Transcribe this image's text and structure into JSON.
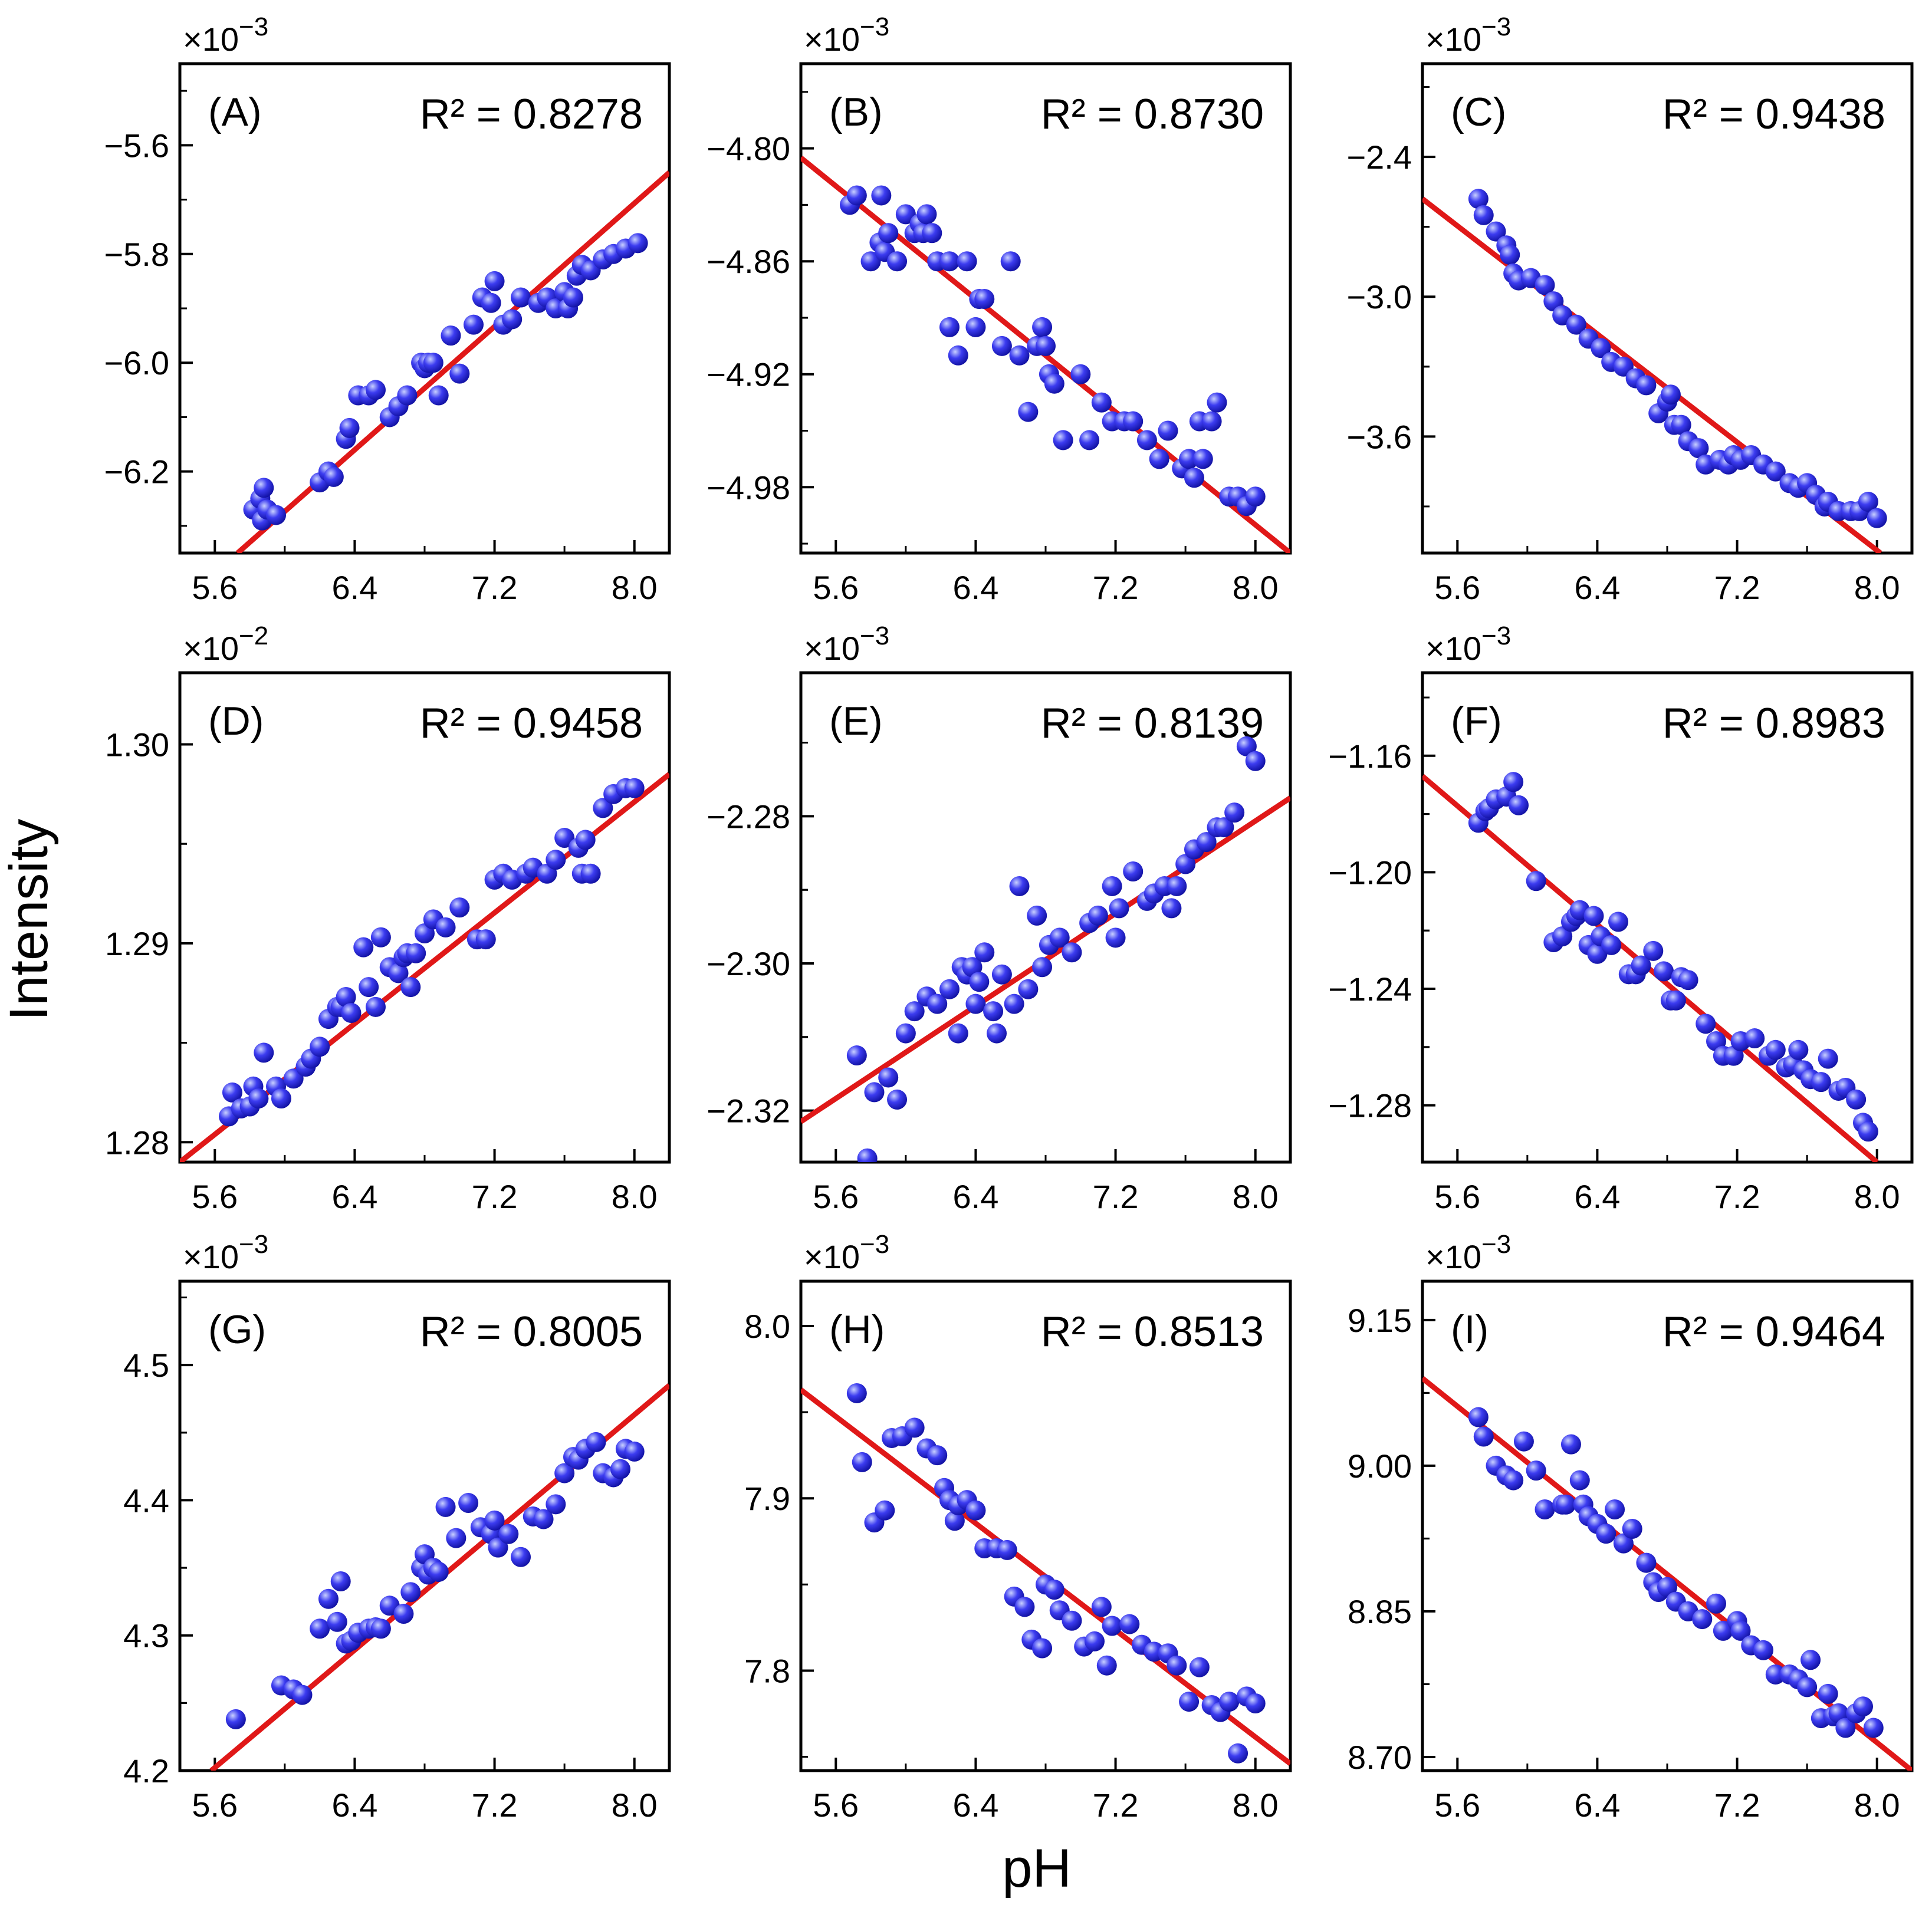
{
  "figure": {
    "xlabel": "pH",
    "ylabel": "Intensity"
  },
  "colors": {
    "point_fill": "#3c3cf0",
    "point_highlight": "#c8d0ff",
    "point_shadow": "#1010a0",
    "fit_line": "#e01818",
    "axes": "#000000"
  },
  "chart_data": [
    {
      "type": "scatter",
      "id": "A",
      "panel_label": "(A)",
      "r2_text": "R² = 0.8278",
      "exponent_prefix": "×10",
      "exponent": "−3",
      "xlim": [
        5.4,
        8.2
      ],
      "ylim": [
        -6.35,
        -5.45
      ],
      "xticks": [
        5.6,
        6.4,
        7.2,
        8.0
      ],
      "xtick_labels": [
        "5.6",
        "6.4",
        "7.2",
        "8.0"
      ],
      "yticks": [
        -6.2,
        -6.0,
        -5.8,
        -5.6
      ],
      "ytick_labels": [
        "−6.2",
        "−6.0",
        "−5.8",
        "−5.6"
      ],
      "fit": {
        "x": [
          5.73,
          8.2
        ],
        "y": [
          -6.35,
          -5.65
        ]
      },
      "x": [
        5.82,
        5.86,
        5.87,
        5.88,
        5.9,
        5.95,
        6.2,
        6.25,
        6.28,
        6.35,
        6.37,
        6.42,
        6.48,
        6.52,
        6.6,
        6.65,
        6.7,
        6.78,
        6.8,
        6.82,
        6.85,
        6.88,
        6.95,
        7.0,
        7.08,
        7.13,
        7.18,
        7.2,
        7.25,
        7.3,
        7.35,
        7.45,
        7.5,
        7.55,
        7.6,
        7.62,
        7.65,
        7.67,
        7.7,
        7.75,
        7.82,
        7.88,
        7.95,
        8.02
      ],
      "y": [
        -6.27,
        -6.25,
        -6.29,
        -6.23,
        -6.27,
        -6.28,
        -6.22,
        -6.2,
        -6.21,
        -6.14,
        -6.12,
        -6.06,
        -6.06,
        -6.05,
        -6.1,
        -6.08,
        -6.06,
        -6.0,
        -6.01,
        -6.0,
        -6.0,
        -6.06,
        -5.95,
        -6.02,
        -5.93,
        -5.88,
        -5.89,
        -5.85,
        -5.93,
        -5.92,
        -5.88,
        -5.89,
        -5.88,
        -5.9,
        -5.87,
        -5.9,
        -5.88,
        -5.84,
        -5.82,
        -5.83,
        -5.81,
        -5.8,
        -5.79,
        -5.78
      ]
    },
    {
      "type": "scatter",
      "id": "B",
      "panel_label": "(B)",
      "r2_text": "R² = 0.8730",
      "exponent_prefix": "×10",
      "exponent": "−3",
      "xlim": [
        5.4,
        8.2
      ],
      "ylim": [
        -5.015,
        -4.755
      ],
      "xticks": [
        5.6,
        6.4,
        7.2,
        8.0
      ],
      "xtick_labels": [
        "5.6",
        "6.4",
        "7.2",
        "8.0"
      ],
      "yticks": [
        -4.98,
        -4.92,
        -4.86,
        -4.8
      ],
      "ytick_labels": [
        "−4.98",
        "−4.92",
        "−4.86",
        "−4.80"
      ],
      "fit": {
        "x": [
          5.4,
          8.2
        ],
        "y": [
          -4.805,
          -5.015
        ]
      },
      "x": [
        5.68,
        5.72,
        5.8,
        5.85,
        5.86,
        5.88,
        5.9,
        5.95,
        6.0,
        6.05,
        6.08,
        6.1,
        6.12,
        6.15,
        6.18,
        6.25,
        6.25,
        6.3,
        6.35,
        6.4,
        6.42,
        6.45,
        6.55,
        6.6,
        6.65,
        6.7,
        6.75,
        6.78,
        6.8,
        6.82,
        6.85,
        6.9,
        7.0,
        7.05,
        7.12,
        7.18,
        7.25,
        7.3,
        7.38,
        7.45,
        7.5,
        7.58,
        7.62,
        7.65,
        7.68,
        7.7,
        7.75,
        7.78,
        7.85,
        7.9,
        7.95,
        8.0
      ],
      "y": [
        -4.83,
        -4.825,
        -4.86,
        -4.85,
        -4.825,
        -4.855,
        -4.845,
        -4.86,
        -4.835,
        -4.845,
        -4.84,
        -4.845,
        -4.835,
        -4.845,
        -4.86,
        -4.895,
        -4.86,
        -4.91,
        -4.86,
        -4.895,
        -4.88,
        -4.88,
        -4.905,
        -4.86,
        -4.91,
        -4.94,
        -4.905,
        -4.895,
        -4.905,
        -4.92,
        -4.925,
        -4.955,
        -4.92,
        -4.955,
        -4.935,
        -4.945,
        -4.945,
        -4.945,
        -4.955,
        -4.965,
        -4.95,
        -4.97,
        -4.965,
        -4.975,
        -4.945,
        -4.965,
        -4.945,
        -4.935,
        -4.985,
        -4.985,
        -4.99,
        -4.985
      ]
    },
    {
      "type": "scatter",
      "id": "C",
      "panel_label": "(C)",
      "r2_text": "R² = 0.9438",
      "exponent_prefix": "×10",
      "exponent": "−3",
      "xlim": [
        5.4,
        8.2
      ],
      "ylim": [
        -4.1,
        -2.0
      ],
      "xticks": [
        5.6,
        6.4,
        7.2,
        8.0
      ],
      "xtick_labels": [
        "5.6",
        "6.4",
        "7.2",
        "8.0"
      ],
      "yticks": [
        -3.6,
        -3.0,
        -2.4
      ],
      "ytick_labels": [
        "−3.6",
        "−3.0",
        "−2.4"
      ],
      "fit": {
        "x": [
          5.4,
          8.02
        ],
        "y": [
          -2.58,
          -4.1
        ]
      },
      "x": [
        5.72,
        5.75,
        5.82,
        5.88,
        5.9,
        5.92,
        5.95,
        6.02,
        6.1,
        6.15,
        6.2,
        6.28,
        6.35,
        6.42,
        6.48,
        6.55,
        6.62,
        6.68,
        6.75,
        6.8,
        6.82,
        6.84,
        6.88,
        6.92,
        6.98,
        7.02,
        7.1,
        7.15,
        7.18,
        7.22,
        7.28,
        7.35,
        7.42,
        7.5,
        7.55,
        7.6,
        7.65,
        7.7,
        7.72,
        7.78,
        7.85,
        7.9,
        7.95,
        8.0
      ],
      "y": [
        -2.58,
        -2.65,
        -2.72,
        -2.78,
        -2.82,
        -2.9,
        -2.93,
        -2.92,
        -2.95,
        -3.02,
        -3.08,
        -3.12,
        -3.18,
        -3.22,
        -3.28,
        -3.3,
        -3.35,
        -3.38,
        -3.5,
        -3.45,
        -3.42,
        -3.55,
        -3.55,
        -3.62,
        -3.65,
        -3.72,
        -3.7,
        -3.72,
        -3.68,
        -3.7,
        -3.68,
        -3.72,
        -3.75,
        -3.8,
        -3.82,
        -3.8,
        -3.85,
        -3.9,
        -3.88,
        -3.92,
        -3.92,
        -3.92,
        -3.88,
        -3.95
      ]
    },
    {
      "type": "scatter",
      "id": "D",
      "panel_label": "(D)",
      "r2_text": "R² = 0.9458",
      "exponent_prefix": "×10",
      "exponent": "−2",
      "xlim": [
        5.4,
        8.2
      ],
      "ylim": [
        1.279,
        1.3036
      ],
      "xticks": [
        5.6,
        6.4,
        7.2,
        8.0
      ],
      "xtick_labels": [
        "5.6",
        "6.4",
        "7.2",
        "8.0"
      ],
      "yticks": [
        1.28,
        1.29,
        1.3
      ],
      "ytick_labels": [
        "1.28",
        "1.29",
        "1.30"
      ],
      "fit": {
        "x": [
          5.4,
          8.2
        ],
        "y": [
          1.279,
          1.2985
        ]
      },
      "x": [
        5.68,
        5.7,
        5.75,
        5.8,
        5.82,
        5.85,
        5.88,
        5.95,
        5.98,
        6.05,
        6.12,
        6.15,
        6.2,
        6.25,
        6.3,
        6.32,
        6.35,
        6.38,
        6.45,
        6.48,
        6.52,
        6.55,
        6.6,
        6.65,
        6.68,
        6.7,
        6.72,
        6.75,
        6.8,
        6.85,
        6.92,
        7.0,
        7.1,
        7.15,
        7.2,
        7.25,
        7.3,
        7.38,
        7.42,
        7.5,
        7.55,
        7.6,
        7.68,
        7.7,
        7.72,
        7.75,
        7.82,
        7.88,
        7.95,
        8.0
      ],
      "y": [
        1.2813,
        1.2825,
        1.2817,
        1.2818,
        1.2828,
        1.2822,
        1.2845,
        1.2828,
        1.2822,
        1.2832,
        1.2838,
        1.2842,
        1.2848,
        1.2862,
        1.2868,
        1.2868,
        1.2873,
        1.2865,
        1.2898,
        1.2878,
        1.2868,
        1.2903,
        1.2888,
        1.2885,
        1.2893,
        1.2895,
        1.2878,
        1.2895,
        1.2905,
        1.2912,
        1.2908,
        1.2918,
        1.2902,
        1.2902,
        1.2932,
        1.2935,
        1.2932,
        1.2935,
        1.2938,
        1.2935,
        1.2942,
        1.2953,
        1.2948,
        1.2935,
        1.2952,
        1.2935,
        1.2968,
        1.2975,
        1.2978,
        1.2978
      ]
    },
    {
      "type": "scatter",
      "id": "E",
      "panel_label": "(E)",
      "r2_text": "R² = 0.8139",
      "exponent_prefix": "×10",
      "exponent": "−3",
      "xlim": [
        5.4,
        8.2
      ],
      "ylim": [
        -2.327,
        -2.2605
      ],
      "xticks": [
        5.6,
        6.4,
        7.2,
        8.0
      ],
      "xtick_labels": [
        "5.6",
        "6.4",
        "7.2",
        "8.0"
      ],
      "yticks": [
        -2.32,
        -2.3,
        -2.28
      ],
      "ytick_labels": [
        "−2.32",
        "−2.30",
        "−2.28"
      ],
      "fit": {
        "x": [
          5.4,
          8.2
        ],
        "y": [
          -2.3215,
          -2.2775
        ]
      },
      "x": [
        5.72,
        5.78,
        5.82,
        5.9,
        5.95,
        6.0,
        6.05,
        6.12,
        6.18,
        6.25,
        6.3,
        6.32,
        6.35,
        6.38,
        6.4,
        6.42,
        6.45,
        6.5,
        6.52,
        6.55,
        6.62,
        6.65,
        6.7,
        6.75,
        6.78,
        6.82,
        6.88,
        6.95,
        7.05,
        7.1,
        7.18,
        7.2,
        7.22,
        7.3,
        7.38,
        7.42,
        7.48,
        7.52,
        7.55,
        7.6,
        7.65,
        7.72,
        7.78,
        7.82,
        7.88,
        7.95,
        8.0
      ],
      "y": [
        -2.3125,
        -2.3265,
        -2.3175,
        -2.3155,
        -2.3185,
        -2.3095,
        -2.3065,
        -2.3045,
        -2.3055,
        -2.3035,
        -2.3095,
        -2.3005,
        -2.3015,
        -2.3005,
        -2.3055,
        -2.3025,
        -2.2985,
        -2.3065,
        -2.3095,
        -2.3015,
        -2.3055,
        -2.2895,
        -2.3035,
        -2.2935,
        -2.3005,
        -2.2975,
        -2.2965,
        -2.2985,
        -2.2945,
        -2.2935,
        -2.2895,
        -2.2965,
        -2.2925,
        -2.2875,
        -2.2915,
        -2.2905,
        -2.2895,
        -2.2925,
        -2.2895,
        -2.2865,
        -2.2845,
        -2.2835,
        -2.2815,
        -2.2815,
        -2.2795,
        -2.2705,
        -2.2725
      ]
    },
    {
      "type": "scatter",
      "id": "F",
      "panel_label": "(F)",
      "r2_text": "R² = 0.8983",
      "exponent_prefix": "×10",
      "exponent": "−3",
      "xlim": [
        5.4,
        8.2
      ],
      "ylim": [
        -1.2995,
        -1.1315
      ],
      "xticks": [
        5.6,
        6.4,
        7.2,
        8.0
      ],
      "xtick_labels": [
        "5.6",
        "6.4",
        "7.2",
        "8.0"
      ],
      "yticks": [
        -1.28,
        -1.24,
        -1.2,
        -1.16
      ],
      "ytick_labels": [
        "−1.28",
        "−1.24",
        "−1.20",
        "−1.16"
      ],
      "fit": {
        "x": [
          5.4,
          8.0
        ],
        "y": [
          -1.167,
          -1.2995
        ]
      },
      "x": [
        5.72,
        5.76,
        5.78,
        5.82,
        5.88,
        5.92,
        5.95,
        6.05,
        6.15,
        6.2,
        6.25,
        6.28,
        6.3,
        6.35,
        6.38,
        6.4,
        6.42,
        6.48,
        6.52,
        6.58,
        6.62,
        6.65,
        6.72,
        6.78,
        6.82,
        6.85,
        6.88,
        6.92,
        7.02,
        7.08,
        7.12,
        7.18,
        7.22,
        7.3,
        7.38,
        7.42,
        7.48,
        7.52,
        7.55,
        7.58,
        7.62,
        7.68,
        7.72,
        7.78,
        7.82,
        7.88,
        7.92,
        7.95
      ],
      "y": [
        -1.183,
        -1.179,
        -1.178,
        -1.175,
        -1.174,
        -1.169,
        -1.177,
        -1.203,
        -1.224,
        -1.222,
        -1.217,
        -1.215,
        -1.213,
        -1.225,
        -1.215,
        -1.228,
        -1.222,
        -1.225,
        -1.217,
        -1.235,
        -1.235,
        -1.232,
        -1.227,
        -1.234,
        -1.244,
        -1.244,
        -1.236,
        -1.237,
        -1.252,
        -1.258,
        -1.263,
        -1.263,
        -1.258,
        -1.257,
        -1.263,
        -1.261,
        -1.267,
        -1.266,
        -1.261,
        -1.268,
        -1.271,
        -1.272,
        -1.264,
        -1.275,
        -1.274,
        -1.278,
        -1.286,
        -1.289
      ]
    },
    {
      "type": "scatter",
      "id": "G",
      "panel_label": "(G)",
      "r2_text": "R² = 0.8005",
      "exponent_prefix": "×10",
      "exponent": "−3",
      "xlim": [
        5.4,
        8.2
      ],
      "ylim": [
        4.2,
        4.562
      ],
      "xticks": [
        5.6,
        6.4,
        7.2,
        8.0
      ],
      "xtick_labels": [
        "5.6",
        "6.4",
        "7.2",
        "8.0"
      ],
      "yticks": [
        4.2,
        4.3,
        4.4,
        4.5
      ],
      "ytick_labels": [
        "4.2",
        "4.3",
        "4.4",
        "4.5"
      ],
      "fit": {
        "x": [
          5.58,
          8.2
        ],
        "y": [
          4.2,
          4.485
        ]
      },
      "x": [
        5.72,
        5.98,
        6.05,
        6.1,
        6.2,
        6.25,
        6.3,
        6.32,
        6.35,
        6.38,
        6.42,
        6.48,
        6.52,
        6.55,
        6.6,
        6.68,
        6.72,
        6.78,
        6.8,
        6.82,
        6.85,
        6.88,
        6.92,
        6.98,
        7.05,
        7.12,
        7.18,
        7.2,
        7.22,
        7.28,
        7.35,
        7.42,
        7.48,
        7.55,
        7.6,
        7.65,
        7.68,
        7.72,
        7.78,
        7.82,
        7.88,
        7.92,
        7.95,
        8.0
      ],
      "y": [
        4.238,
        4.263,
        4.26,
        4.256,
        4.305,
        4.327,
        4.31,
        4.34,
        4.294,
        4.296,
        4.302,
        4.305,
        4.306,
        4.305,
        4.322,
        4.316,
        4.332,
        4.35,
        4.36,
        4.345,
        4.35,
        4.347,
        4.395,
        4.372,
        4.398,
        4.38,
        4.375,
        4.385,
        4.365,
        4.375,
        4.358,
        4.388,
        4.386,
        4.397,
        4.42,
        4.432,
        4.43,
        4.438,
        4.443,
        4.42,
        4.417,
        4.423,
        4.438,
        4.436
      ]
    },
    {
      "type": "scatter",
      "id": "H",
      "panel_label": "(H)",
      "r2_text": "R² = 0.8513",
      "exponent_prefix": "×10",
      "exponent": "−3",
      "xlim": [
        5.4,
        8.2
      ],
      "ylim": [
        7.742,
        8.026
      ],
      "xticks": [
        5.6,
        6.4,
        7.2,
        8.0
      ],
      "xtick_labels": [
        "5.6",
        "6.4",
        "7.2",
        "8.0"
      ],
      "yticks": [
        7.8,
        7.9,
        8.0
      ],
      "ytick_labels": [
        "7.8",
        "7.9",
        "8.0"
      ],
      "fit": {
        "x": [
          5.4,
          8.2
        ],
        "y": [
          7.963,
          7.746
        ]
      },
      "x": [
        5.72,
        5.75,
        5.82,
        5.88,
        5.92,
        5.98,
        6.05,
        6.12,
        6.18,
        6.22,
        6.25,
        6.28,
        6.3,
        6.35,
        6.4,
        6.45,
        6.52,
        6.58,
        6.62,
        6.68,
        6.72,
        6.78,
        6.8,
        6.85,
        6.88,
        6.95,
        7.02,
        7.08,
        7.12,
        7.15,
        7.18,
        7.28,
        7.35,
        7.42,
        7.5,
        7.55,
        7.62,
        7.68,
        7.75,
        7.8,
        7.85,
        7.9,
        7.95,
        8.0
      ],
      "y": [
        7.961,
        7.921,
        7.886,
        7.893,
        7.935,
        7.936,
        7.941,
        7.929,
        7.925,
        7.906,
        7.899,
        7.887,
        7.896,
        7.899,
        7.893,
        7.871,
        7.871,
        7.87,
        7.843,
        7.837,
        7.818,
        7.813,
        7.85,
        7.847,
        7.835,
        7.829,
        7.814,
        7.817,
        7.837,
        7.803,
        7.826,
        7.827,
        7.815,
        7.811,
        7.81,
        7.803,
        7.782,
        7.802,
        7.78,
        7.776,
        7.782,
        7.752,
        7.785,
        7.781
      ]
    },
    {
      "type": "scatter",
      "id": "I",
      "panel_label": "(I)",
      "r2_text": "R² = 0.9464",
      "exponent_prefix": "×10",
      "exponent": "−3",
      "xlim": [
        5.4,
        8.2
      ],
      "ylim": [
        8.686,
        9.19
      ],
      "xticks": [
        5.6,
        6.4,
        7.2,
        8.0
      ],
      "xtick_labels": [
        "5.6",
        "6.4",
        "7.2",
        "8.0"
      ],
      "yticks": [
        8.7,
        8.85,
        9.0,
        9.15
      ],
      "ytick_labels": [
        "8.70",
        "8.85",
        "9.00",
        "9.15"
      ],
      "fit": {
        "x": [
          5.4,
          8.2
        ],
        "y": [
          9.09,
          8.686
        ]
      },
      "x": [
        5.72,
        5.75,
        5.82,
        5.88,
        5.92,
        5.98,
        6.05,
        6.1,
        6.2,
        6.22,
        6.25,
        6.3,
        6.32,
        6.35,
        6.4,
        6.45,
        6.5,
        6.55,
        6.6,
        6.68,
        6.72,
        6.75,
        6.8,
        6.85,
        6.92,
        7.0,
        7.08,
        7.12,
        7.2,
        7.22,
        7.28,
        7.35,
        7.42,
        7.5,
        7.55,
        7.6,
        7.62,
        7.68,
        7.72,
        7.75,
        7.78,
        7.82,
        7.88,
        7.92,
        7.98
      ],
      "y": [
        9.05,
        9.03,
        9.0,
        8.99,
        8.985,
        9.025,
        8.995,
        8.955,
        8.96,
        8.96,
        9.022,
        8.985,
        8.96,
        8.948,
        8.94,
        8.93,
        8.955,
        8.92,
        8.935,
        8.9,
        8.88,
        8.87,
        8.875,
        8.86,
        8.85,
        8.842,
        8.858,
        8.83,
        8.84,
        8.83,
        8.815,
        8.81,
        8.785,
        8.785,
        8.78,
        8.772,
        8.8,
        8.74,
        8.765,
        8.742,
        8.745,
        8.73,
        8.745,
        8.752,
        8.73
      ]
    }
  ]
}
